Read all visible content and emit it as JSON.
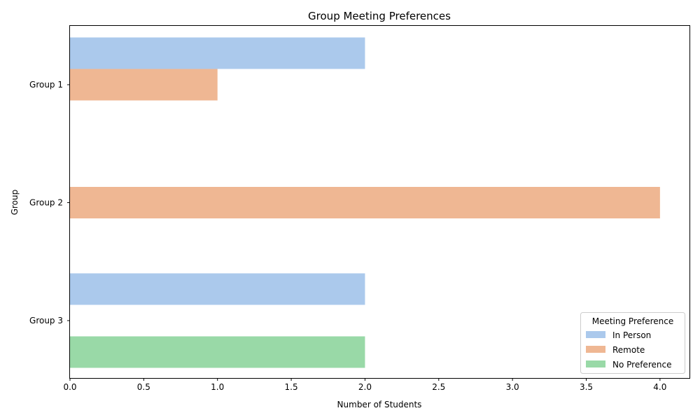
{
  "chart_data": {
    "type": "bar",
    "orientation": "horizontal",
    "title": "Group Meeting Preferences",
    "xlabel": "Number of Students",
    "ylabel": "Group",
    "categories": [
      "Group 1",
      "Group 2",
      "Group 3"
    ],
    "xlim": [
      0,
      4.2
    ],
    "xticks": [
      "0.0",
      "0.5",
      "1.0",
      "1.5",
      "2.0",
      "2.5",
      "3.0",
      "3.5",
      "4.0"
    ],
    "grid": false,
    "legend": {
      "title": "Meeting Preference",
      "placement": "lower-right"
    },
    "series": [
      {
        "name": "In Person",
        "color": "#abc9ec",
        "values": [
          2,
          null,
          2
        ]
      },
      {
        "name": "Remote",
        "color": "#efb793",
        "values": [
          1,
          4,
          null
        ]
      },
      {
        "name": "No Preference",
        "color": "#99d9a7",
        "values": [
          null,
          null,
          2
        ]
      }
    ]
  }
}
